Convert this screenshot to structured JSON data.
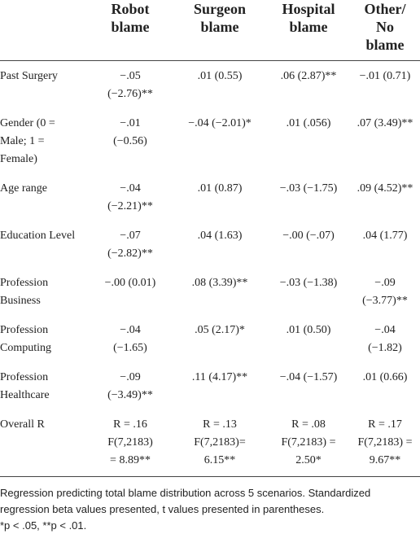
{
  "table": {
    "headers": [
      [
        "Robot",
        "blame"
      ],
      [
        "Surgeon",
        "blame"
      ],
      [
        "Hospital",
        "blame"
      ],
      [
        "Other/",
        "No",
        "blame"
      ]
    ],
    "rows": [
      [
        [
          "Past Surgery"
        ],
        [
          "−.05",
          "(−2.76)**"
        ],
        [
          ".01 (0.55)"
        ],
        [
          ".06 (2.87)**"
        ],
        [
          "−.01 (0.71)"
        ]
      ],
      [
        [
          "Gender (0 =",
          "Male; 1 =",
          "Female)"
        ],
        [
          "−.01",
          "(−0.56)"
        ],
        [
          "−.04 (−2.01)*"
        ],
        [
          ".01 (.056)"
        ],
        [
          ".07 (3.49)**"
        ]
      ],
      [
        [
          "Age range"
        ],
        [
          "−.04",
          "(−2.21)**"
        ],
        [
          ".01 (0.87)"
        ],
        [
          "−.03 (−1.75)"
        ],
        [
          ".09 (4.52)**"
        ]
      ],
      [
        [
          "Education Level"
        ],
        [
          "−.07",
          "(−2.82)**"
        ],
        [
          ".04 (1.63)"
        ],
        [
          "−.00 (−.07)"
        ],
        [
          ".04 (1.77)"
        ]
      ],
      [
        [
          "Profession",
          "Business"
        ],
        [
          "−.00 (0.01)"
        ],
        [
          ".08 (3.39)**"
        ],
        [
          "−.03 (−1.38)"
        ],
        [
          "−.09",
          "(−3.77)**"
        ]
      ],
      [
        [
          "Profession",
          "Computing"
        ],
        [
          "−.04",
          "(−1.65)"
        ],
        [
          ".05 (2.17)*"
        ],
        [
          ".01 (0.50)"
        ],
        [
          "−.04",
          "(−1.82)"
        ]
      ],
      [
        [
          "Profession",
          "Healthcare"
        ],
        [
          "−.09",
          "(−3.49)**"
        ],
        [
          ".11 (4.17)**"
        ],
        [
          "−.04 (−1.57)"
        ],
        [
          ".01 (0.66)"
        ]
      ],
      [
        [
          "Overall R"
        ],
        [
          "R = .16",
          "F(7,2183)",
          "= 8.89**"
        ],
        [
          "R = .13",
          "F(7,2183)=",
          "6.15**"
        ],
        [
          "R = .08",
          "F(7,2183) =",
          "2.50*"
        ],
        [
          "R = .17",
          "F(7,2183) =",
          "9.67**"
        ]
      ]
    ],
    "notes": [
      "Regression predicting total blame distribution across 5 scenarios. Standardized regression beta values presented, t values presented in parentheses.",
      "*p < .05, **p < .01."
    ]
  }
}
